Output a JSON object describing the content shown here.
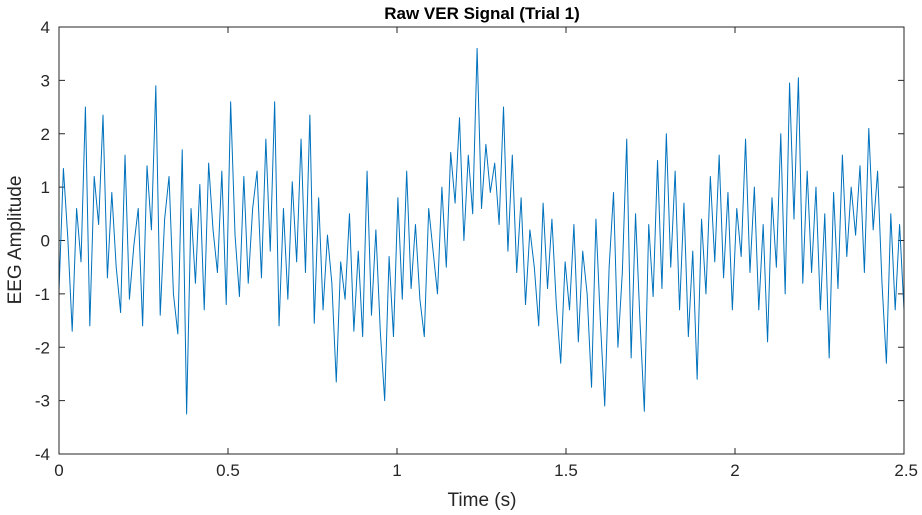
{
  "chart_data": {
    "type": "line",
    "title": "Raw VER Signal (Trial 1)",
    "xlabel": "Time (s)",
    "ylabel": "EEG Amplitude",
    "xlim": [
      0,
      2.5
    ],
    "ylim": [
      -4,
      4
    ],
    "xticks": [
      0,
      0.5,
      1,
      1.5,
      2,
      2.5
    ],
    "xtick_labels": [
      "0",
      "0.5",
      "1",
      "1.5",
      "2",
      "2.5"
    ],
    "yticks": [
      -4,
      -3,
      -2,
      -1,
      0,
      1,
      2,
      3,
      4
    ],
    "ytick_labels": [
      "-4",
      "-3",
      "-2",
      "-1",
      "0",
      "1",
      "2",
      "3",
      "4"
    ],
    "grid": false,
    "line_color": "#0072BD",
    "sample_interval_s": 0.004,
    "series": [
      {
        "values": [
          -0.95,
          1.35,
          0.05,
          -1.7,
          0.6,
          -0.4,
          2.5,
          -1.6,
          1.2,
          0.3,
          2.35,
          -0.7,
          0.9,
          -0.5,
          -1.35,
          1.6,
          -1.1,
          -0.1,
          0.6,
          -1.6,
          1.4,
          0.2,
          2.9,
          -1.4,
          0.4,
          1.2,
          -1.0,
          -1.75,
          1.7,
          -3.25,
          0.6,
          -0.8,
          1.05,
          -1.3,
          1.45,
          0.2,
          -0.6,
          1.3,
          -1.2,
          2.6,
          0.1,
          -1.05,
          1.2,
          -0.8,
          0.6,
          1.3,
          -0.7,
          1.9,
          -0.2,
          2.6,
          -1.6,
          0.6,
          -1.1,
          1.1,
          -0.4,
          1.9,
          -0.6,
          2.35,
          -1.55,
          0.8,
          -1.3,
          0.1,
          -0.8,
          -2.65,
          -0.4,
          -1.1,
          0.5,
          -1.7,
          -0.2,
          -1.8,
          1.3,
          -1.4,
          0.2,
          -1.7,
          -3.0,
          -0.3,
          -1.8,
          0.8,
          -1.1,
          1.3,
          -0.9,
          0.3,
          -1.1,
          -1.8,
          0.6,
          -0.2,
          -1.0,
          1.0,
          -0.5,
          1.65,
          0.7,
          2.3,
          0.0,
          1.6,
          0.5,
          3.6,
          0.6,
          1.8,
          0.9,
          1.45,
          0.3,
          2.5,
          -0.2,
          1.6,
          -0.6,
          0.8,
          -1.2,
          0.2,
          -0.5,
          -1.6,
          0.7,
          -0.9,
          0.4,
          -1.2,
          -2.3,
          -0.4,
          -1.3,
          0.3,
          -1.9,
          -0.2,
          -1.0,
          -2.75,
          0.4,
          -1.5,
          -3.1,
          -0.5,
          0.9,
          -2.0,
          -0.6,
          1.9,
          -2.2,
          0.5,
          -1.5,
          -3.2,
          0.3,
          -1.05,
          1.5,
          -0.9,
          2.0,
          -0.5,
          1.3,
          -1.3,
          0.7,
          -1.8,
          -0.2,
          -2.6,
          0.4,
          -1.0,
          1.2,
          -0.4,
          1.6,
          -0.7,
          0.9,
          -1.3,
          0.6,
          -0.3,
          1.9,
          -0.6,
          1.0,
          -1.3,
          0.3,
          -1.9,
          0.8,
          -0.5,
          2.0,
          -1.0,
          2.95,
          0.4,
          3.05,
          -0.8,
          1.3,
          -0.6,
          1.0,
          -1.3,
          0.5,
          -2.2,
          0.9,
          -0.9,
          1.6,
          -0.3,
          1.0,
          0.1,
          1.4,
          -0.6,
          2.1,
          0.2,
          1.3,
          -0.8,
          -2.3,
          0.5,
          -1.3,
          0.3,
          -1.3
        ]
      }
    ]
  }
}
